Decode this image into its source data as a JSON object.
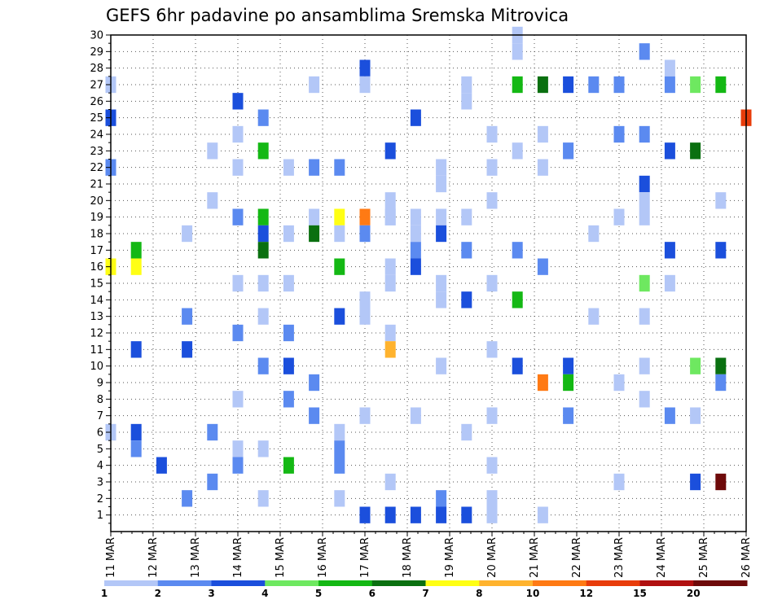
{
  "chart_data": {
    "type": "heatmap",
    "title": "GEFS 6hr padavine po ansamblima Sremska Mitrovica",
    "x_tick_labels": [
      "11 MAR",
      "12 MAR",
      "13 MAR",
      "14 MAR",
      "15 MAR",
      "16 MAR",
      "17 MAR",
      "18 MAR",
      "19 MAR",
      "20 MAR",
      "21 MAR",
      "22 MAR",
      "23 MAR",
      "24 MAR",
      "25 MAR",
      "26 MAR"
    ],
    "xlim_days": [
      0,
      15
    ],
    "y_tick_labels": [
      "1",
      "2",
      "3",
      "4",
      "5",
      "6",
      "7",
      "8",
      "9",
      "10",
      "11",
      "12",
      "13",
      "14",
      "15",
      "16",
      "17",
      "18",
      "19",
      "20",
      "21",
      "22",
      "23",
      "24",
      "25",
      "26",
      "27",
      "28",
      "29",
      "30"
    ],
    "ylim": [
      0,
      30
    ],
    "grid": true,
    "legend": {
      "placement": "bottom",
      "colors": [
        "#b3c7f7",
        "#5b8af0",
        "#1b4fdc",
        "#6ee860",
        "#14b814",
        "#0a7010",
        "#ffff14",
        "#ffb32e",
        "#ff7a14",
        "#e83c0a",
        "#b01010",
        "#6e0a0a"
      ],
      "labels": [
        "1",
        "2",
        "3",
        "4",
        "5",
        "6",
        "7",
        "8",
        "10",
        "12",
        "15",
        "20"
      ]
    },
    "cells": [
      [
        0.64,
        30,
        1
      ],
      [
        0.84,
        29,
        2
      ],
      [
        0.64,
        29,
        1
      ],
      [
        0.4,
        28,
        3
      ],
      [
        0.88,
        28,
        1
      ],
      [
        0.4,
        27,
        1
      ],
      [
        0.56,
        27,
        1
      ],
      [
        0.0,
        27,
        1
      ],
      [
        0.32,
        27,
        1
      ],
      [
        0.88,
        27,
        2
      ],
      [
        0.96,
        27,
        5
      ],
      [
        0.92,
        27,
        4
      ],
      [
        0.76,
        27,
        2
      ],
      [
        0.64,
        27,
        5
      ],
      [
        0.68,
        27,
        6
      ],
      [
        0.8,
        27,
        2
      ],
      [
        0.72,
        27,
        3
      ],
      [
        0.56,
        26,
        1
      ],
      [
        0.2,
        26,
        3
      ],
      [
        0.24,
        25,
        2
      ],
      [
        0.48,
        25,
        3
      ],
      [
        0.0,
        25,
        3
      ],
      [
        1.0,
        25,
        12
      ],
      [
        0.2,
        24,
        1
      ],
      [
        0.84,
        24,
        2
      ],
      [
        0.8,
        24,
        2
      ],
      [
        0.68,
        24,
        1
      ],
      [
        0.6,
        24,
        1
      ],
      [
        0.24,
        23,
        5
      ],
      [
        0.44,
        23,
        3
      ],
      [
        0.16,
        23,
        1
      ],
      [
        0.72,
        23,
        1
      ],
      [
        0.64,
        23,
        1
      ],
      [
        0.72,
        23,
        2
      ],
      [
        0.88,
        23,
        3
      ],
      [
        0.92,
        23,
        6
      ],
      [
        0.36,
        22,
        2
      ],
      [
        0.6,
        22,
        1
      ],
      [
        0.2,
        22,
        1
      ],
      [
        0.52,
        22,
        1
      ],
      [
        0.28,
        22,
        1
      ],
      [
        0.32,
        22,
        2
      ],
      [
        0.68,
        22,
        1
      ],
      [
        0.0,
        22,
        2
      ],
      [
        0.52,
        21,
        1
      ],
      [
        0.84,
        21,
        3
      ],
      [
        0.44,
        20,
        1
      ],
      [
        0.6,
        20,
        1
      ],
      [
        0.96,
        20,
        1
      ],
      [
        0.16,
        20,
        1
      ],
      [
        0.84,
        20,
        1
      ],
      [
        0.2,
        19,
        2
      ],
      [
        0.44,
        19,
        1
      ],
      [
        0.24,
        19,
        5
      ],
      [
        0.32,
        19,
        1
      ],
      [
        0.44,
        19,
        1
      ],
      [
        0.48,
        19,
        1
      ],
      [
        0.52,
        19,
        1
      ],
      [
        0.8,
        19,
        1
      ],
      [
        0.84,
        19,
        1
      ],
      [
        0.4,
        19,
        11
      ],
      [
        0.36,
        19,
        7
      ],
      [
        0.56,
        19,
        1
      ],
      [
        0.12,
        18,
        1
      ],
      [
        0.28,
        18,
        1
      ],
      [
        0.48,
        18,
        1
      ],
      [
        0.36,
        18,
        1
      ],
      [
        0.24,
        18,
        3
      ],
      [
        0.32,
        18,
        6
      ],
      [
        0.76,
        18,
        1
      ],
      [
        0.4,
        18,
        2
      ],
      [
        0.52,
        18,
        3
      ],
      [
        0.96,
        17,
        3
      ],
      [
        0.88,
        17,
        3
      ],
      [
        0.64,
        17,
        2
      ],
      [
        0.56,
        17,
        2
      ],
      [
        0.04,
        17,
        5
      ],
      [
        0.24,
        17,
        6
      ],
      [
        0.48,
        17,
        2
      ],
      [
        0.0,
        16,
        7
      ],
      [
        0.04,
        16,
        7
      ],
      [
        0.36,
        16,
        5
      ],
      [
        0.48,
        16,
        3
      ],
      [
        0.44,
        16,
        1
      ],
      [
        0.68,
        16,
        2
      ],
      [
        0.44,
        15,
        1
      ],
      [
        0.6,
        15,
        1
      ],
      [
        0.84,
        15,
        4
      ],
      [
        0.88,
        15,
        1
      ],
      [
        0.2,
        15,
        1
      ],
      [
        0.24,
        15,
        1
      ],
      [
        0.28,
        15,
        1
      ],
      [
        0.52,
        15,
        1
      ],
      [
        0.56,
        14,
        3
      ],
      [
        0.52,
        14,
        1
      ],
      [
        0.64,
        14,
        5
      ],
      [
        0.4,
        14,
        1
      ],
      [
        0.76,
        13,
        1
      ],
      [
        0.84,
        13,
        1
      ],
      [
        0.12,
        13,
        2
      ],
      [
        0.24,
        13,
        1
      ],
      [
        0.4,
        13,
        1
      ],
      [
        0.36,
        13,
        3
      ],
      [
        0.44,
        12,
        1
      ],
      [
        0.2,
        12,
        2
      ],
      [
        0.28,
        12,
        2
      ],
      [
        0.6,
        11,
        1
      ],
      [
        0.12,
        11,
        3
      ],
      [
        0.44,
        11,
        8
      ],
      [
        0.04,
        11,
        3
      ],
      [
        0.28,
        10,
        3
      ],
      [
        0.24,
        10,
        2
      ],
      [
        0.72,
        10,
        3
      ],
      [
        0.92,
        10,
        4
      ],
      [
        0.64,
        10,
        3
      ],
      [
        0.84,
        10,
        1
      ],
      [
        0.96,
        10,
        6
      ],
      [
        0.52,
        10,
        1
      ],
      [
        0.32,
        9,
        2
      ],
      [
        0.96,
        9,
        2
      ],
      [
        0.68,
        9,
        11
      ],
      [
        0.72,
        9,
        5
      ],
      [
        0.8,
        9,
        1
      ],
      [
        0.2,
        8,
        1
      ],
      [
        0.28,
        8,
        2
      ],
      [
        0.84,
        8,
        1
      ],
      [
        0.6,
        7,
        1
      ],
      [
        0.32,
        7,
        2
      ],
      [
        0.48,
        7,
        1
      ],
      [
        0.88,
        7,
        2
      ],
      [
        0.92,
        7,
        1
      ],
      [
        0.72,
        7,
        2
      ],
      [
        0.4,
        7,
        1
      ],
      [
        0.36,
        6,
        1
      ],
      [
        0.56,
        6,
        1
      ],
      [
        0.04,
        6,
        3
      ],
      [
        0.0,
        6,
        1
      ],
      [
        0.16,
        6,
        2
      ],
      [
        0.04,
        5,
        2
      ],
      [
        0.2,
        5,
        1
      ],
      [
        0.36,
        5,
        2
      ],
      [
        0.24,
        5,
        1
      ],
      [
        0.08,
        4,
        3
      ],
      [
        0.6,
        4,
        1
      ],
      [
        0.28,
        4,
        5
      ],
      [
        0.2,
        4,
        2
      ],
      [
        0.36,
        4,
        2
      ],
      [
        0.8,
        3,
        1
      ],
      [
        0.16,
        3,
        2
      ],
      [
        0.92,
        3,
        3
      ],
      [
        0.96,
        3,
        20
      ],
      [
        0.44,
        3,
        1
      ],
      [
        0.36,
        2,
        1
      ],
      [
        0.52,
        2,
        2
      ],
      [
        0.6,
        2,
        1
      ],
      [
        0.12,
        2,
        2
      ],
      [
        0.24,
        2,
        1
      ],
      [
        0.6,
        1,
        1
      ],
      [
        0.68,
        1,
        1
      ],
      [
        0.4,
        1,
        3
      ],
      [
        0.44,
        1,
        3
      ],
      [
        0.48,
        1,
        3
      ],
      [
        0.52,
        1,
        3
      ],
      [
        0.56,
        1,
        3
      ]
    ]
  }
}
